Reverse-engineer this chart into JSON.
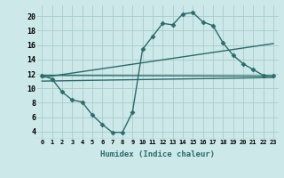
{
  "xlabel": "Humidex (Indice chaleur)",
  "background_color": "#cce8e8",
  "grid_color": "#aacccc",
  "line_color": "#2a6b6b",
  "xlim": [
    -0.5,
    23.5
  ],
  "ylim": [
    3.0,
    21.5
  ],
  "yticks": [
    4,
    6,
    8,
    10,
    12,
    14,
    16,
    18,
    20
  ],
  "xtick_labels": [
    "0",
    "1",
    "2",
    "3",
    "4",
    "5",
    "6",
    "7",
    "8",
    "9",
    "10",
    "11",
    "12",
    "13",
    "14",
    "15",
    "16",
    "17",
    "18",
    "19",
    "20",
    "21",
    "22",
    "23"
  ],
  "xtick_vals": [
    0,
    1,
    2,
    3,
    4,
    5,
    6,
    7,
    8,
    9,
    10,
    11,
    12,
    13,
    14,
    15,
    16,
    17,
    18,
    19,
    20,
    21,
    22,
    23
  ],
  "series": [
    {
      "x": [
        0,
        1,
        2,
        3,
        4,
        5,
        6,
        7,
        8,
        9,
        10,
        11,
        12,
        13,
        14,
        15,
        16,
        17,
        18,
        19,
        20,
        21,
        22,
        23
      ],
      "y": [
        11.8,
        11.3,
        9.5,
        8.4,
        8.1,
        6.3,
        5.0,
        3.9,
        3.9,
        6.7,
        15.4,
        17.2,
        19.0,
        18.8,
        20.3,
        20.5,
        19.2,
        18.7,
        16.3,
        14.6,
        13.4,
        12.6,
        11.8,
        11.7
      ],
      "marker": "D",
      "markersize": 2.5,
      "linewidth": 1.0
    },
    {
      "x": [
        0,
        23
      ],
      "y": [
        11.8,
        11.7
      ],
      "marker": null,
      "linewidth": 1.0
    },
    {
      "x": [
        0,
        23
      ],
      "y": [
        11.5,
        16.2
      ],
      "marker": null,
      "linewidth": 1.0
    },
    {
      "x": [
        0,
        23
      ],
      "y": [
        11.0,
        11.5
      ],
      "marker": null,
      "linewidth": 1.0
    }
  ]
}
